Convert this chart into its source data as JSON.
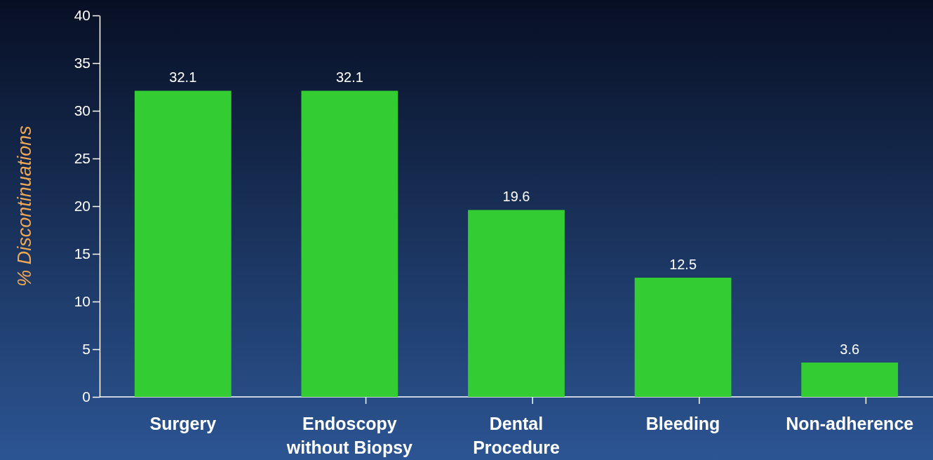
{
  "chart_data": {
    "type": "bar",
    "ylabel": "% Discontinuations",
    "categories": [
      "Surgery",
      "Endoscopy without Biopsy",
      "Dental Procedure",
      "Bleeding",
      "Non-adherence"
    ],
    "values": [
      32.1,
      32.1,
      19.6,
      12.5,
      3.6
    ],
    "color": "#33cc33",
    "ylim": [
      0,
      40
    ],
    "yticks": [
      0,
      5,
      10,
      15,
      20,
      25,
      30,
      35,
      40
    ],
    "data_labels": true
  }
}
